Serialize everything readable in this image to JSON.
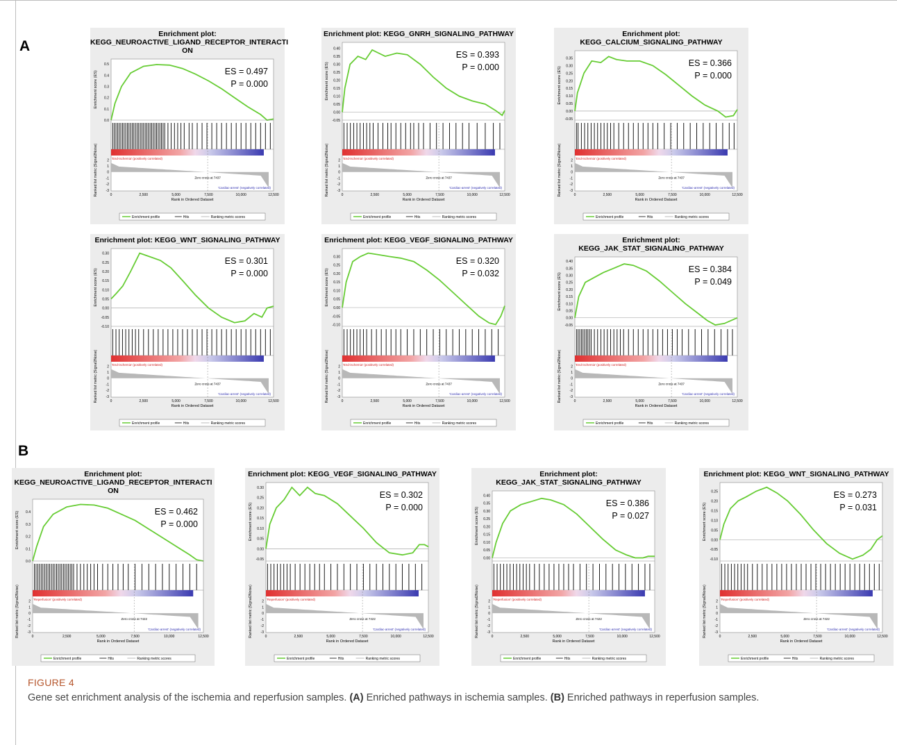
{
  "panel_labels": {
    "a": "A",
    "b": "B"
  },
  "caption": {
    "figure_label": "FIGURE 4",
    "text_1": "Gene set enrichment analysis of the ischemia and reperfusion samples. ",
    "label_a": "(A)",
    "text_2": " Enriched pathways in ischemia samples. ",
    "label_b": "(B)",
    "text_3": " Enriched pathways in reperfusion samples."
  },
  "common": {
    "ylabel": "Enrichment score (ES)",
    "ylabel2": "Ranked list metric (Signal2Noise)",
    "xlabel": "Rank in Ordered Dataset",
    "xticks": [
      "0",
      "2,500",
      "5,000",
      "7,500",
      "10,000",
      "12,500"
    ],
    "metric_ticks": [
      "2",
      "1",
      "0",
      "-1",
      "-2",
      "-3"
    ],
    "legend": [
      "Enrichment profile",
      "Hits",
      "Ranking metric scores"
    ],
    "neg_label": "'Cardiac-arrest' (negatively correlated)",
    "colors": {
      "line": "#66cc33",
      "pos": "#e03030",
      "neg": "#3a3ab0",
      "bg": "#ececec"
    }
  },
  "chart_data": [
    {
      "type": "line",
      "group": "A",
      "title": [
        "Enrichment plot:",
        "KEGG_NEUROACTIVE_LIGAND_RECEPTOR_INTERACTI",
        "ON"
      ],
      "es": "ES = 0.497",
      "p": "P = 0.000",
      "yticks": [
        "0.5",
        "0.4",
        "0.3",
        "0.2",
        "0.1",
        "0.0"
      ],
      "ylim": [
        0,
        0.52
      ],
      "pos_label": "'End-ischemia' (positively correlated)",
      "zero_cross": "Zero cross at 7437",
      "x": [
        0,
        300,
        800,
        1500,
        2500,
        3500,
        4500,
        5500,
        6500,
        7500,
        8500,
        9500,
        10500,
        11500,
        12000,
        12500
      ],
      "y": [
        0.0,
        0.15,
        0.3,
        0.42,
        0.48,
        0.495,
        0.49,
        0.46,
        0.41,
        0.35,
        0.28,
        0.2,
        0.12,
        0.05,
        0.0,
        0.01
      ],
      "hits": [
        0.01,
        0.02,
        0.03,
        0.04,
        0.05,
        0.06,
        0.07,
        0.08,
        0.09,
        0.1,
        0.11,
        0.12,
        0.13,
        0.14,
        0.15,
        0.16,
        0.17,
        0.18,
        0.19,
        0.2,
        0.21,
        0.22,
        0.23,
        0.24,
        0.25,
        0.26,
        0.27,
        0.28,
        0.29,
        0.3,
        0.31,
        0.32,
        0.33,
        0.35,
        0.37,
        0.39,
        0.41,
        0.43,
        0.45,
        0.48,
        0.5,
        0.53,
        0.56,
        0.59,
        0.62,
        0.65,
        0.68,
        0.71,
        0.74,
        0.77,
        0.8,
        0.83,
        0.86,
        0.89,
        0.92,
        0.95,
        0.98
      ]
    },
    {
      "type": "line",
      "group": "A",
      "title": [
        "Enrichment plot: KEGG_GNRH_SIGNALING_PATHWAY"
      ],
      "es": "ES = 0.393",
      "p": "P = 0.000",
      "yticks": [
        "0.40",
        "0.35",
        "0.30",
        "0.25",
        "0.20",
        "0.15",
        "0.10",
        "0.05",
        "0.00",
        "-0.05"
      ],
      "ylim": [
        -0.05,
        0.42
      ],
      "pos_label": "'End-ischemia' (positively correlated)",
      "zero_cross": "Zero cross at 7437",
      "x": [
        0,
        200,
        600,
        1200,
        1800,
        2300,
        2800,
        3300,
        4200,
        5000,
        6000,
        7000,
        8000,
        9000,
        10000,
        11000,
        11800,
        12300,
        12500
      ],
      "y": [
        0.0,
        0.15,
        0.3,
        0.35,
        0.33,
        0.39,
        0.37,
        0.35,
        0.37,
        0.36,
        0.3,
        0.22,
        0.15,
        0.1,
        0.07,
        0.05,
        0.01,
        -0.02,
        0.01
      ],
      "hits": [
        0.01,
        0.03,
        0.05,
        0.07,
        0.09,
        0.11,
        0.13,
        0.15,
        0.17,
        0.19,
        0.22,
        0.25,
        0.28,
        0.3,
        0.33,
        0.36,
        0.39,
        0.42,
        0.44,
        0.47,
        0.5,
        0.54,
        0.58,
        0.62,
        0.66,
        0.7,
        0.74,
        0.78,
        0.83,
        0.88,
        0.93,
        0.97
      ]
    },
    {
      "type": "line",
      "group": "A",
      "title": [
        "Enrichment plot:",
        "KEGG_CALCIUM_SIGNALING_PATHWAY"
      ],
      "es": "ES = 0.366",
      "p": "P = 0.000",
      "yticks": [
        "0.35",
        "0.30",
        "0.25",
        "0.20",
        "0.15",
        "0.10",
        "0.05",
        "0.00",
        "-0.05"
      ],
      "ylim": [
        -0.06,
        0.38
      ],
      "pos_label": "'End-ischemia' (positively correlated)",
      "zero_cross": "Zero cross at 7437",
      "x": [
        0,
        200,
        700,
        1300,
        2000,
        2600,
        3200,
        4000,
        5000,
        6000,
        7000,
        8000,
        9000,
        10000,
        11000,
        11600,
        12200,
        12500
      ],
      "y": [
        0.0,
        0.12,
        0.25,
        0.33,
        0.32,
        0.36,
        0.34,
        0.33,
        0.33,
        0.3,
        0.24,
        0.17,
        0.1,
        0.04,
        0.0,
        -0.04,
        -0.03,
        0.01
      ],
      "hits": [
        0.01,
        0.02,
        0.04,
        0.06,
        0.08,
        0.1,
        0.12,
        0.14,
        0.16,
        0.18,
        0.2,
        0.22,
        0.24,
        0.27,
        0.3,
        0.33,
        0.36,
        0.39,
        0.42,
        0.45,
        0.48,
        0.51,
        0.55,
        0.59,
        0.63,
        0.67,
        0.71,
        0.75,
        0.79,
        0.83,
        0.87,
        0.91,
        0.95,
        0.98
      ]
    },
    {
      "type": "line",
      "group": "A",
      "title": [
        "Enrichment plot: KEGG_WNT_SIGNALING_PATHWAY"
      ],
      "es": "ES = 0.301",
      "p": "P = 0.000",
      "yticks": [
        "0.30",
        "0.25",
        "0.20",
        "0.15",
        "0.10",
        "0.05",
        "0.00",
        "-0.05",
        "-0.10"
      ],
      "ylim": [
        -0.1,
        0.31
      ],
      "pos_label": "'End-ischemia' (positively correlated)",
      "zero_cross": "Zero cross at 7437",
      "x": [
        0,
        400,
        900,
        1500,
        2200,
        3000,
        3800,
        4600,
        5500,
        6500,
        7500,
        8500,
        9500,
        10300,
        11000,
        11600,
        12000,
        12500
      ],
      "y": [
        0.05,
        0.08,
        0.12,
        0.2,
        0.3,
        0.28,
        0.26,
        0.22,
        0.15,
        0.07,
        0.0,
        -0.05,
        -0.08,
        -0.07,
        -0.03,
        -0.05,
        0.0,
        0.01
      ],
      "hits": [
        0.01,
        0.03,
        0.05,
        0.07,
        0.09,
        0.11,
        0.13,
        0.15,
        0.17,
        0.2,
        0.23,
        0.26,
        0.29,
        0.32,
        0.35,
        0.38,
        0.41,
        0.44,
        0.47,
        0.5,
        0.53,
        0.56,
        0.59,
        0.62,
        0.65,
        0.68,
        0.71,
        0.74,
        0.77,
        0.8,
        0.83,
        0.86,
        0.89,
        0.92,
        0.95,
        0.98
      ]
    },
    {
      "type": "line",
      "group": "A",
      "title": [
        "Enrichment plot: KEGG_VEGF_SIGNALING_PATHWAY"
      ],
      "es": "ES = 0.320",
      "p": "P = 0.032",
      "yticks": [
        "0.30",
        "0.25",
        "0.20",
        "0.15",
        "0.10",
        "0.05",
        "0.00",
        "-0.05",
        "-0.10"
      ],
      "ylim": [
        -0.11,
        0.33
      ],
      "pos_label": "'End-ischemia' (positively correlated)",
      "zero_cross": "Zero cross at 7437",
      "x": [
        0,
        300,
        800,
        1400,
        2000,
        2800,
        3600,
        4500,
        5500,
        6500,
        7500,
        8500,
        9500,
        10500,
        11300,
        11800,
        12200,
        12500
      ],
      "y": [
        0.0,
        0.15,
        0.27,
        0.3,
        0.32,
        0.31,
        0.3,
        0.29,
        0.27,
        0.22,
        0.16,
        0.09,
        0.02,
        -0.05,
        -0.09,
        -0.1,
        -0.05,
        0.01
      ],
      "hits": [
        0.01,
        0.03,
        0.05,
        0.07,
        0.09,
        0.11,
        0.13,
        0.15,
        0.18,
        0.21,
        0.24,
        0.27,
        0.3,
        0.33,
        0.36,
        0.4,
        0.44,
        0.48,
        0.52,
        0.56,
        0.6,
        0.64,
        0.68,
        0.72,
        0.76,
        0.8,
        0.84,
        0.88,
        0.92,
        0.96
      ]
    },
    {
      "type": "line",
      "group": "A",
      "title": [
        "Enrichment plot:",
        "KEGG_JAK_STAT_SIGNALING_PATHWAY"
      ],
      "es": "ES = 0.384",
      "p": "P = 0.049",
      "yticks": [
        "0.40",
        "0.35",
        "0.30",
        "0.25",
        "0.20",
        "0.15",
        "0.10",
        "0.05",
        "0.00",
        "-0.05"
      ],
      "ylim": [
        -0.06,
        0.41
      ],
      "pos_label": "'End-ischemia' (positively correlated)",
      "zero_cross": "Zero cross at 7437",
      "x": [
        0,
        300,
        800,
        1400,
        2200,
        3000,
        3800,
        4500,
        5500,
        6500,
        7500,
        8500,
        9500,
        10200,
        10800,
        11500,
        12000,
        12500
      ],
      "y": [
        0.0,
        0.15,
        0.25,
        0.28,
        0.32,
        0.35,
        0.38,
        0.37,
        0.33,
        0.26,
        0.18,
        0.1,
        0.03,
        -0.02,
        -0.05,
        -0.04,
        -0.02,
        0.0
      ],
      "hits": [
        0.01,
        0.02,
        0.03,
        0.04,
        0.05,
        0.06,
        0.07,
        0.08,
        0.09,
        0.1,
        0.12,
        0.14,
        0.16,
        0.18,
        0.2,
        0.22,
        0.24,
        0.26,
        0.28,
        0.3,
        0.33,
        0.36,
        0.39,
        0.42,
        0.45,
        0.48,
        0.51,
        0.54,
        0.57,
        0.6,
        0.63,
        0.66,
        0.7,
        0.74,
        0.78,
        0.82,
        0.86,
        0.9,
        0.94,
        0.97
      ]
    },
    {
      "type": "line",
      "group": "B",
      "title": [
        "Enrichment plot:",
        "KEGG_NEUROACTIVE_LIGAND_RECEPTOR_INTERACTI",
        "ON"
      ],
      "es": "ES = 0.462",
      "p": "P = 0.000",
      "yticks": [
        "0.4",
        "0.3",
        "0.2",
        "0.1",
        "0.0"
      ],
      "ylim": [
        0,
        0.48
      ],
      "pos_label": "'Reperfusion' (positively correlated)",
      "zero_cross": "Zero cross at 7422",
      "x": [
        0,
        300,
        800,
        1500,
        2500,
        3500,
        4500,
        5500,
        6500,
        7500,
        8500,
        9500,
        10500,
        11500,
        12000,
        12500
      ],
      "y": [
        0.0,
        0.12,
        0.28,
        0.38,
        0.44,
        0.46,
        0.455,
        0.43,
        0.38,
        0.33,
        0.26,
        0.19,
        0.12,
        0.05,
        0.01,
        0.0
      ],
      "hits": [
        0.01,
        0.02,
        0.03,
        0.04,
        0.05,
        0.06,
        0.07,
        0.08,
        0.09,
        0.1,
        0.11,
        0.12,
        0.13,
        0.14,
        0.15,
        0.16,
        0.17,
        0.18,
        0.19,
        0.2,
        0.21,
        0.22,
        0.23,
        0.24,
        0.26,
        0.28,
        0.3,
        0.32,
        0.34,
        0.36,
        0.38,
        0.41,
        0.44,
        0.47,
        0.5,
        0.53,
        0.56,
        0.6,
        0.64,
        0.68,
        0.72,
        0.76,
        0.8,
        0.84,
        0.88,
        0.92,
        0.96
      ]
    },
    {
      "type": "line",
      "group": "B",
      "title": [
        "Enrichment plot: KEGG_VEGF_SIGNALING_PATHWAY"
      ],
      "es": "ES = 0.302",
      "p": "P = 0.000",
      "yticks": [
        "0.30",
        "0.25",
        "0.20",
        "0.15",
        "0.10",
        "0.05",
        "0.00",
        "-0.05"
      ],
      "ylim": [
        -0.06,
        0.31
      ],
      "pos_label": "'Reperfusion' (positively correlated)",
      "zero_cross": "Zero cross at 7422",
      "x": [
        0,
        300,
        800,
        1400,
        2000,
        2600,
        3200,
        3800,
        4500,
        5500,
        6500,
        7500,
        8500,
        9500,
        10500,
        11300,
        11800,
        12200,
        12500
      ],
      "y": [
        0.0,
        0.12,
        0.2,
        0.24,
        0.3,
        0.26,
        0.3,
        0.27,
        0.26,
        0.22,
        0.16,
        0.1,
        0.03,
        -0.02,
        -0.03,
        -0.02,
        0.02,
        0.02,
        0.01
      ],
      "hits": [
        0.01,
        0.03,
        0.05,
        0.07,
        0.09,
        0.11,
        0.13,
        0.15,
        0.18,
        0.21,
        0.24,
        0.27,
        0.3,
        0.33,
        0.36,
        0.4,
        0.44,
        0.48,
        0.52,
        0.56,
        0.6,
        0.64,
        0.68,
        0.72,
        0.76,
        0.8,
        0.84,
        0.88,
        0.92,
        0.96
      ]
    },
    {
      "type": "line",
      "group": "B",
      "title": [
        "Enrichment plot:",
        "KEGG_JAK_STAT_SIGNALING_PATHWAY"
      ],
      "es": "ES = 0.386",
      "p": "P = 0.027",
      "yticks": [
        "0.40",
        "0.35",
        "0.30",
        "0.25",
        "0.20",
        "0.15",
        "0.10",
        "0.05",
        "0.00"
      ],
      "ylim": [
        -0.02,
        0.41
      ],
      "pos_label": "'Reperfusion' (positively correlated)",
      "zero_cross": "Zero cross at 7422",
      "x": [
        0,
        300,
        800,
        1400,
        2200,
        3000,
        3800,
        4500,
        5500,
        6500,
        7500,
        8500,
        9500,
        10300,
        11000,
        11600,
        12000,
        12500
      ],
      "y": [
        0.0,
        0.1,
        0.22,
        0.3,
        0.34,
        0.36,
        0.38,
        0.37,
        0.34,
        0.28,
        0.2,
        0.12,
        0.05,
        0.02,
        0.0,
        0.0,
        0.01,
        0.01
      ],
      "hits": [
        0.01,
        0.03,
        0.05,
        0.07,
        0.09,
        0.11,
        0.13,
        0.15,
        0.17,
        0.19,
        0.21,
        0.23,
        0.26,
        0.29,
        0.32,
        0.35,
        0.38,
        0.41,
        0.44,
        0.47,
        0.5,
        0.54,
        0.58,
        0.62,
        0.66,
        0.7,
        0.74,
        0.78,
        0.82,
        0.86,
        0.9,
        0.94,
        0.97
      ]
    },
    {
      "type": "line",
      "group": "B",
      "title": [
        "Enrichment plot: KEGG_WNT_SIGNALING_PATHWAY"
      ],
      "es": "ES = 0.273",
      "p": "P = 0.031",
      "yticks": [
        "0.25",
        "0.20",
        "0.15",
        "0.10",
        "0.05",
        "0.00",
        "-0.05",
        "-0.10"
      ],
      "ylim": [
        -0.11,
        0.28
      ],
      "pos_label": "'Reperfusion' (positively correlated)",
      "zero_cross": "Zero cross at 7422",
      "x": [
        0,
        300,
        800,
        1400,
        2000,
        2800,
        3600,
        4400,
        5200,
        6200,
        7200,
        8200,
        9200,
        10200,
        11000,
        11600,
        12100,
        12500
      ],
      "y": [
        0.0,
        0.08,
        0.16,
        0.2,
        0.22,
        0.25,
        0.27,
        0.24,
        0.2,
        0.13,
        0.05,
        -0.02,
        -0.07,
        -0.1,
        -0.08,
        -0.05,
        0.0,
        0.02
      ],
      "hits": [
        0.01,
        0.03,
        0.05,
        0.07,
        0.09,
        0.11,
        0.13,
        0.15,
        0.17,
        0.2,
        0.23,
        0.26,
        0.29,
        0.32,
        0.35,
        0.38,
        0.41,
        0.44,
        0.47,
        0.5,
        0.53,
        0.56,
        0.59,
        0.62,
        0.65,
        0.68,
        0.71,
        0.74,
        0.77,
        0.8,
        0.83,
        0.86,
        0.89,
        0.92,
        0.95,
        0.98
      ]
    }
  ]
}
